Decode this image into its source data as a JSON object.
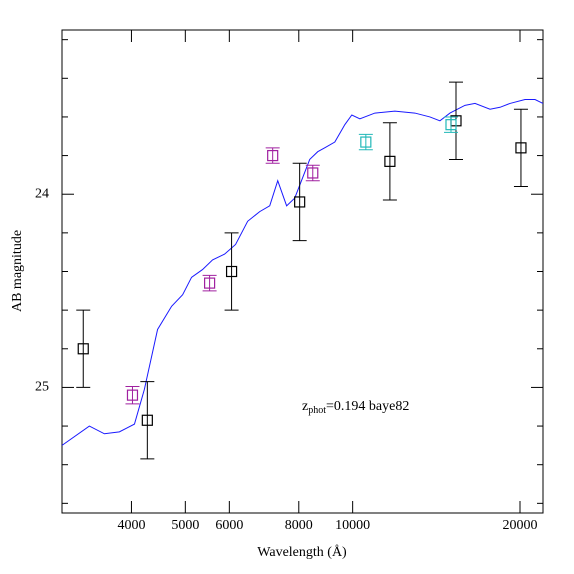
{
  "chart_data": {
    "type": "line",
    "x_label": "Wavelength (Å)",
    "y_label": "AB magnitude",
    "annotation": {
      "z": "z",
      "sub": "phot",
      "rest": "=0.194 baye82",
      "color": "#2020e0"
    },
    "x_log": true,
    "y_inverted": true,
    "xlim": [
      3000,
      22000
    ],
    "ylim": [
      25.65,
      23.15
    ],
    "xticks": [
      4000,
      5000,
      6000,
      8000,
      10000,
      20000
    ],
    "yticks": [
      24,
      25
    ],
    "yminorticks": [
      23.2,
      23.4,
      23.6,
      23.8,
      24.2,
      24.4,
      24.6,
      24.8,
      25.2,
      25.4,
      25.6
    ],
    "series": [
      {
        "style": "line",
        "color": "#1a1aff",
        "x": [
          3000,
          3360,
          3576,
          3805,
          4050,
          4220,
          4457,
          4724,
          4945,
          5131,
          5369,
          5597,
          5884,
          6157,
          6473,
          6805,
          7093,
          7332,
          7607,
          7867,
          8371,
          8653,
          8908,
          9288,
          9680,
          9965,
          10303,
          10963,
          11910,
          12942,
          13771,
          14355,
          14963,
          15924,
          16600,
          17664,
          18412,
          19193,
          20419,
          21285,
          22000
        ],
        "values": [
          25.3,
          25.2,
          25.24,
          25.23,
          25.19,
          25.01,
          24.7,
          24.58,
          24.52,
          24.43,
          24.39,
          24.34,
          24.31,
          24.26,
          24.14,
          24.09,
          24.06,
          23.93,
          24.06,
          24.02,
          23.82,
          23.78,
          23.76,
          23.73,
          23.64,
          23.59,
          23.61,
          23.58,
          23.57,
          23.58,
          23.6,
          23.62,
          23.58,
          23.54,
          23.53,
          23.56,
          23.55,
          23.53,
          23.51,
          23.51,
          23.53
        ]
      },
      {
        "style": "points",
        "color": "#000000",
        "x": [
          3276,
          4272,
          6056,
          8029,
          11668,
          15343,
          20080
        ],
        "values": [
          24.8,
          25.17,
          24.4,
          24.04,
          23.83,
          23.62,
          23.76
        ],
        "errors": [
          0.2,
          0.2,
          0.2,
          0.2,
          0.2,
          0.2,
          0.2
        ]
      },
      {
        "style": "points",
        "color": "#a020a0",
        "x": [
          4017,
          5529,
          7180,
          8477
        ],
        "values": [
          25.04,
          24.46,
          23.8,
          23.89
        ],
        "errors": [
          0.045,
          0.04,
          0.04,
          0.04
        ]
      },
      {
        "style": "points",
        "color": "#20b8b8",
        "x": [
          10561,
          15028
        ],
        "values": [
          23.73,
          23.64
        ],
        "errors": [
          0.04,
          0.04
        ]
      }
    ]
  }
}
